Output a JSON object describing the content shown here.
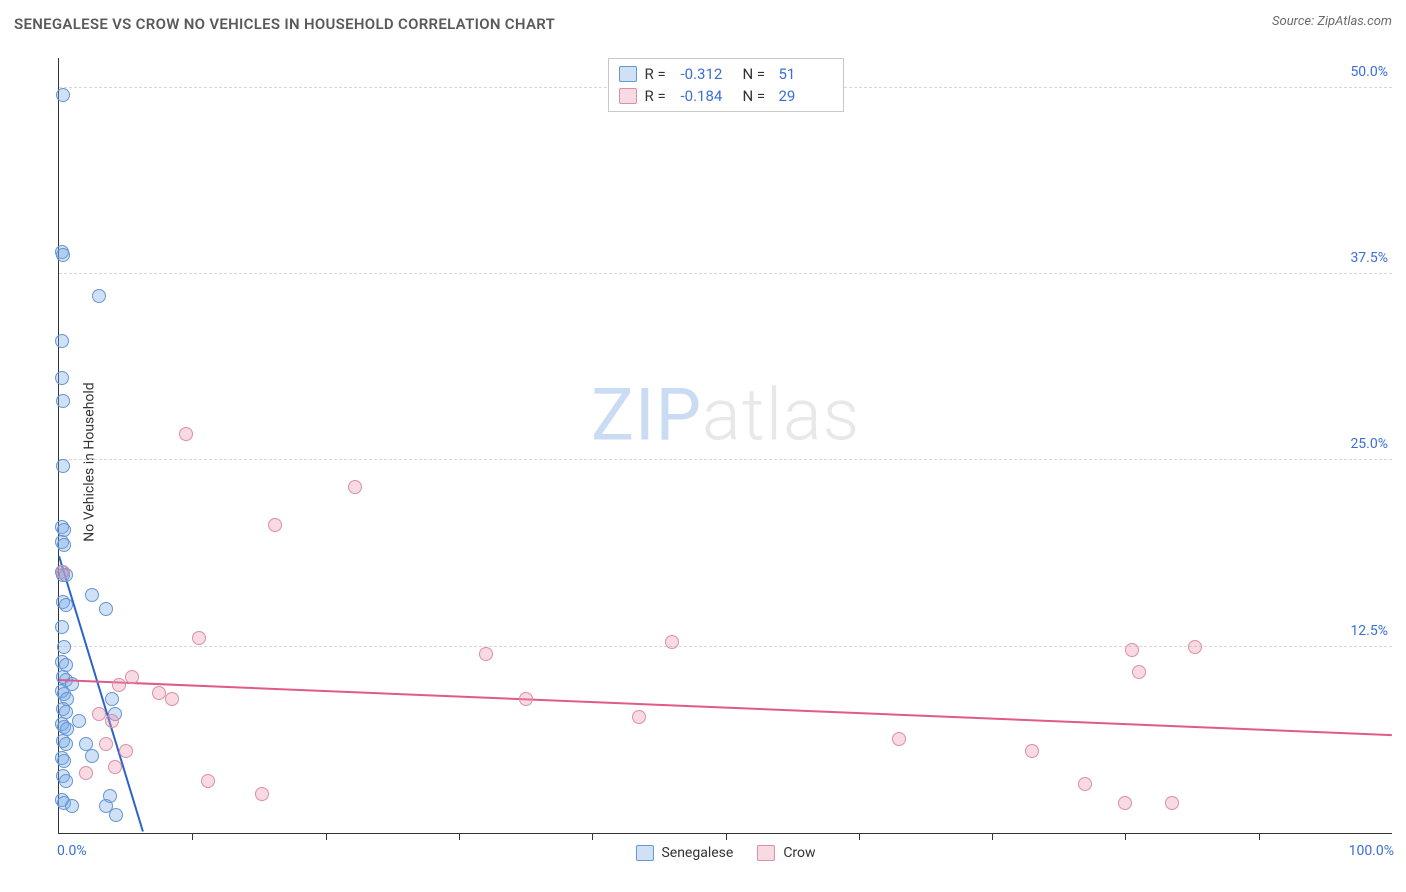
{
  "title": "SENEGALESE VS CROW NO VEHICLES IN HOUSEHOLD CORRELATION CHART",
  "source": "Source: ZipAtlas.com",
  "ylabel": "No Vehicles in Household",
  "watermark": {
    "zip": "ZIP",
    "atlas": "atlas",
    "zip_color": "#c9dcf3",
    "atlas_color": "#e8e8e8"
  },
  "chart": {
    "type": "scatter-correlation",
    "background_color": "#ffffff",
    "grid_color": "#d8d8d8",
    "axis_color": "#333333",
    "label_color": "#3b6fd4",
    "xlim": [
      0,
      100
    ],
    "ylim": [
      0,
      52
    ],
    "x_tick_step": 10,
    "x0_label": "0.0%",
    "x100_label": "100.0%",
    "y_ticks": [
      {
        "v": 12.5,
        "label": "12.5%"
      },
      {
        "v": 25.0,
        "label": "25.0%"
      },
      {
        "v": 37.5,
        "label": "37.5%"
      },
      {
        "v": 50.0,
        "label": "50.0%"
      }
    ],
    "series": [
      {
        "name": "Senegalese",
        "fill": "rgba(120,170,230,0.35)",
        "stroke": "#6596d6",
        "trend_color": "#2b63c9",
        "r_label": "R =",
        "r_value": "-0.312",
        "n_label": "N =",
        "n_value": "51",
        "trend": {
          "x1": 0,
          "y1": 18.5,
          "x2": 6.3,
          "y2": 0
        },
        "points": [
          [
            0.3,
            49.5
          ],
          [
            0.2,
            39.0
          ],
          [
            0.3,
            38.8
          ],
          [
            3.0,
            36.0
          ],
          [
            0.2,
            33.0
          ],
          [
            0.2,
            30.5
          ],
          [
            0.3,
            29.0
          ],
          [
            0.3,
            24.6
          ],
          [
            0.2,
            20.5
          ],
          [
            0.4,
            20.3
          ],
          [
            0.2,
            19.5
          ],
          [
            0.4,
            19.3
          ],
          [
            0.2,
            17.5
          ],
          [
            0.3,
            17.3
          ],
          [
            0.5,
            17.3
          ],
          [
            2.5,
            16.0
          ],
          [
            0.3,
            15.5
          ],
          [
            0.5,
            15.3
          ],
          [
            3.5,
            15.0
          ],
          [
            0.2,
            13.8
          ],
          [
            0.4,
            12.5
          ],
          [
            0.2,
            11.5
          ],
          [
            0.5,
            11.3
          ],
          [
            0.3,
            10.5
          ],
          [
            0.5,
            10.3
          ],
          [
            1.0,
            10.0
          ],
          [
            0.2,
            9.5
          ],
          [
            0.4,
            9.3
          ],
          [
            0.6,
            9.0
          ],
          [
            0.3,
            8.3
          ],
          [
            0.5,
            8.1
          ],
          [
            4.0,
            9.0
          ],
          [
            4.2,
            8.0
          ],
          [
            0.2,
            7.3
          ],
          [
            0.4,
            7.1
          ],
          [
            0.6,
            7.0
          ],
          [
            1.5,
            7.5
          ],
          [
            0.3,
            6.2
          ],
          [
            0.5,
            6.0
          ],
          [
            0.2,
            5.0
          ],
          [
            0.4,
            4.8
          ],
          [
            2.0,
            6.0
          ],
          [
            2.5,
            5.2
          ],
          [
            0.3,
            3.8
          ],
          [
            0.5,
            3.5
          ],
          [
            0.2,
            2.2
          ],
          [
            0.4,
            2.0
          ],
          [
            3.8,
            2.5
          ],
          [
            1.0,
            1.8
          ],
          [
            3.5,
            1.8
          ],
          [
            4.3,
            1.2
          ]
        ]
      },
      {
        "name": "Crow",
        "fill": "rgba(235,150,175,0.35)",
        "stroke": "#db8fa8",
        "trend_color": "#e05a8a",
        "r_label": "R =",
        "r_value": "-0.184",
        "n_label": "N =",
        "n_value": "29",
        "trend": {
          "x1": 0,
          "y1": 10.2,
          "x2": 100,
          "y2": 6.5
        },
        "points": [
          [
            0.3,
            17.5
          ],
          [
            9.5,
            26.8
          ],
          [
            22.2,
            23.2
          ],
          [
            16.2,
            20.7
          ],
          [
            10.5,
            13.1
          ],
          [
            5.5,
            10.5
          ],
          [
            4.5,
            9.9
          ],
          [
            7.5,
            9.4
          ],
          [
            8.5,
            9.0
          ],
          [
            3.0,
            8.0
          ],
          [
            4.0,
            7.5
          ],
          [
            3.5,
            6.0
          ],
          [
            5.0,
            5.5
          ],
          [
            4.2,
            4.4
          ],
          [
            2.0,
            4.0
          ],
          [
            11.2,
            3.5
          ],
          [
            15.2,
            2.6
          ],
          [
            32.0,
            12.0
          ],
          [
            35.0,
            9.0
          ],
          [
            43.5,
            7.8
          ],
          [
            46.0,
            12.8
          ],
          [
            63.0,
            6.3
          ],
          [
            73.0,
            5.5
          ],
          [
            77.0,
            3.3
          ],
          [
            80.5,
            12.3
          ],
          [
            81.0,
            10.8
          ],
          [
            85.2,
            12.5
          ],
          [
            80.0,
            2.0
          ],
          [
            83.5,
            2.0
          ]
        ]
      }
    ]
  },
  "legend_bottom": [
    {
      "label": "Senegalese",
      "series": 0
    },
    {
      "label": "Crow",
      "series": 1
    }
  ]
}
